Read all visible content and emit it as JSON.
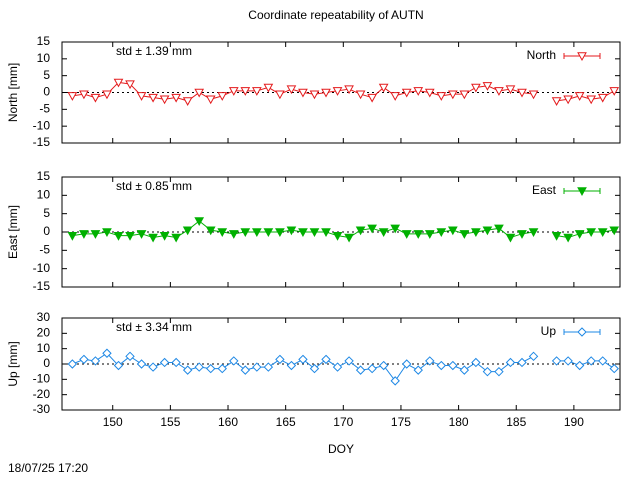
{
  "title": "Coordinate repeatability of AUTN",
  "footer": "18/07/25 17:20",
  "chart_data": [
    {
      "type": "line",
      "ylabel": "North [mm]",
      "annotation": "std ± 1.39 mm",
      "legend": "top-right",
      "reference_line": 0,
      "xlim": [
        145.6,
        194
      ],
      "xticks": [
        150,
        155,
        160,
        165,
        170,
        175,
        180,
        185,
        190
      ],
      "ylim": [
        -15,
        15
      ],
      "yticks": [
        -15,
        -10,
        -5,
        0,
        5,
        10,
        15
      ],
      "x": [
        146.5,
        147.5,
        148.5,
        149.5,
        150.5,
        151.5,
        152.5,
        153.5,
        154.5,
        155.5,
        156.5,
        157.5,
        158.5,
        159.5,
        160.5,
        161.5,
        162.5,
        163.5,
        164.5,
        165.5,
        166.5,
        167.5,
        168.5,
        169.5,
        170.5,
        171.5,
        172.5,
        173.5,
        174.5,
        175.5,
        176.5,
        177.5,
        178.5,
        179.5,
        180.5,
        181.5,
        182.5,
        183.5,
        184.5,
        185.5,
        186.5,
        187.5,
        188.5,
        189.5,
        190.5,
        191.5,
        192.5,
        193.5
      ],
      "series": [
        {
          "name": "North",
          "color": "#e41a1c",
          "marker": "triangle-down-open",
          "values": [
            -1,
            -0.5,
            -1.5,
            -0.5,
            3,
            2.5,
            -1,
            -1.5,
            -2,
            -1.5,
            -2.5,
            0,
            -2,
            -1,
            0.5,
            0.5,
            0.5,
            1.5,
            -0.5,
            1,
            0,
            -0.5,
            0,
            0.5,
            1,
            -0.5,
            -1.5,
            1.5,
            -1,
            0,
            0.5,
            0,
            -1,
            -0.5,
            -0.5,
            1.5,
            2,
            0.5,
            1,
            0,
            -0.5,
            null,
            -2.5,
            -2,
            -1,
            -2,
            -1.5,
            0.5
          ]
        }
      ]
    },
    {
      "type": "line",
      "ylabel": "East [mm]",
      "annotation": "std ± 0.85 mm",
      "legend": "top-right",
      "reference_line": 0,
      "xlim": [
        145.6,
        194
      ],
      "xticks": [
        150,
        155,
        160,
        165,
        170,
        175,
        180,
        185,
        190
      ],
      "ylim": [
        -15,
        15
      ],
      "yticks": [
        -15,
        -10,
        -5,
        0,
        5,
        10,
        15
      ],
      "x": [
        146.5,
        147.5,
        148.5,
        149.5,
        150.5,
        151.5,
        152.5,
        153.5,
        154.5,
        155.5,
        156.5,
        157.5,
        158.5,
        159.5,
        160.5,
        161.5,
        162.5,
        163.5,
        164.5,
        165.5,
        166.5,
        167.5,
        168.5,
        169.5,
        170.5,
        171.5,
        172.5,
        173.5,
        174.5,
        175.5,
        176.5,
        177.5,
        178.5,
        179.5,
        180.5,
        181.5,
        182.5,
        183.5,
        184.5,
        185.5,
        186.5,
        187.5,
        188.5,
        189.5,
        190.5,
        191.5,
        192.5,
        193.5
      ],
      "series": [
        {
          "name": "East",
          "color": "#00b000",
          "marker": "triangle-down-filled",
          "values": [
            -1,
            -0.5,
            -0.5,
            0,
            -1,
            -1,
            -0.5,
            -1.5,
            -1,
            -1.5,
            0.5,
            3,
            0.5,
            0,
            -0.5,
            0,
            0,
            0,
            0,
            0.5,
            0,
            0,
            0,
            -1,
            -1.5,
            0.5,
            1,
            0,
            1,
            -0.5,
            -0.5,
            -0.5,
            0,
            0.5,
            -0.5,
            0,
            0.5,
            1,
            -1.5,
            -0.5,
            0,
            null,
            -1,
            -1.5,
            -0.5,
            0,
            0,
            0.5
          ]
        }
      ]
    },
    {
      "type": "line",
      "ylabel": "Up [mm]",
      "xlabel": "DOY",
      "annotation": "std ± 3.34 mm",
      "legend": "top-right",
      "reference_line": 0,
      "xlim": [
        145.6,
        194
      ],
      "xticks": [
        150,
        155,
        160,
        165,
        170,
        175,
        180,
        185,
        190
      ],
      "xtick_labels": true,
      "ylim": [
        -30,
        30
      ],
      "yticks": [
        -30,
        -20,
        -10,
        0,
        10,
        20,
        30
      ],
      "x": [
        146.5,
        147.5,
        148.5,
        149.5,
        150.5,
        151.5,
        152.5,
        153.5,
        154.5,
        155.5,
        156.5,
        157.5,
        158.5,
        159.5,
        160.5,
        161.5,
        162.5,
        163.5,
        164.5,
        165.5,
        166.5,
        167.5,
        168.5,
        169.5,
        170.5,
        171.5,
        172.5,
        173.5,
        174.5,
        175.5,
        176.5,
        177.5,
        178.5,
        179.5,
        180.5,
        181.5,
        182.5,
        183.5,
        184.5,
        185.5,
        186.5,
        187.5,
        188.5,
        189.5,
        190.5,
        191.5,
        192.5,
        193.5
      ],
      "series": [
        {
          "name": "Up",
          "color": "#1e88e5",
          "marker": "diamond-open",
          "values": [
            0,
            3,
            2,
            7,
            -1,
            5,
            0,
            -2,
            1,
            1,
            -4,
            -2,
            -3,
            -3,
            2,
            -4,
            -2,
            -2,
            3,
            -1,
            3,
            -3,
            3,
            -2,
            2,
            -4,
            -3,
            -1,
            -11,
            0,
            -4,
            2,
            -1,
            -1,
            -4,
            1,
            -5,
            -5,
            1,
            1,
            5,
            null,
            2,
            2,
            -1,
            2,
            2,
            -3
          ]
        }
      ]
    }
  ]
}
